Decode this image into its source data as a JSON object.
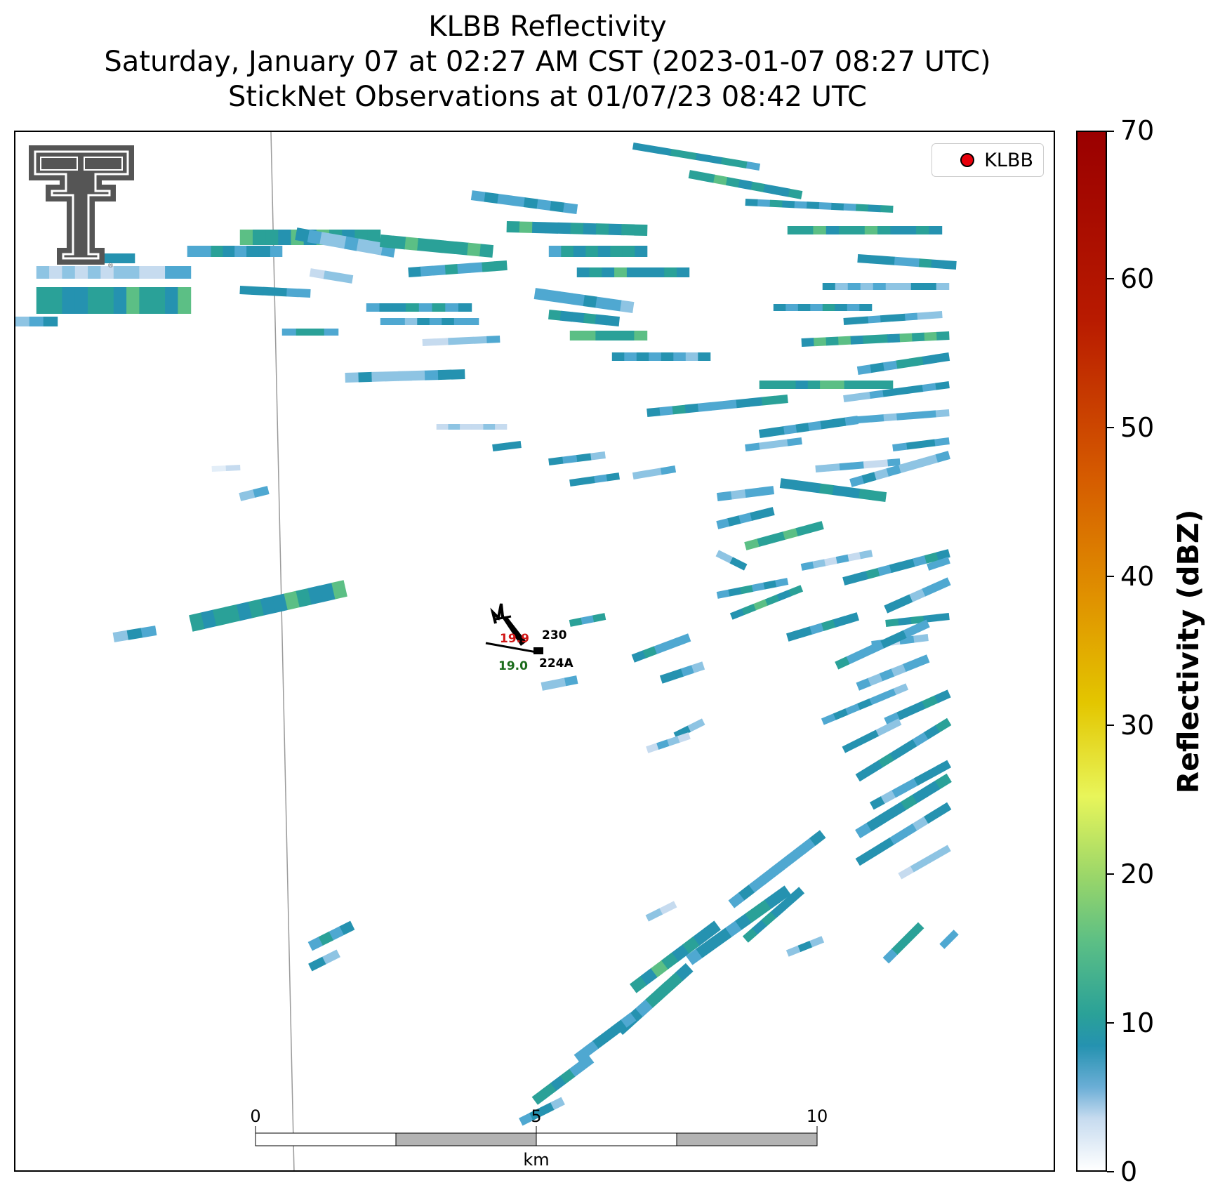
{
  "title": {
    "line1": "KLBB Reflectivity",
    "line2": "Saturday, January 07 at 02:27 AM CST (2023-01-07 08:27 UTC)",
    "line3": "StickNet Observations at 01/07/23 08:42 UTC"
  },
  "legend": {
    "label": "KLBB",
    "marker_color": "#e8000b"
  },
  "stations": [
    {
      "id": "230",
      "value": "19.9",
      "value_color": "#d11515"
    },
    {
      "id": "224A",
      "value": "19.0",
      "value_color": "#1a6b1a"
    }
  ],
  "scalebar": {
    "ticks": [
      "0",
      "5",
      "10"
    ],
    "unit": "km"
  },
  "colorbar": {
    "title": "Reflectivity (dBZ)",
    "ticks": [
      "0",
      "10",
      "20",
      "30",
      "40",
      "50",
      "60",
      "70"
    ],
    "range": [
      0,
      70
    ]
  },
  "colors": {
    "very_light": "#e3eef8",
    "light": "#c6dbef",
    "medium_light": "#8ec4e3",
    "medium": "#4fa8d1",
    "teal": "#2592b0",
    "dark_teal": "#2aa198",
    "green": "#5cbf85"
  },
  "logo": {
    "text": "TT"
  }
}
